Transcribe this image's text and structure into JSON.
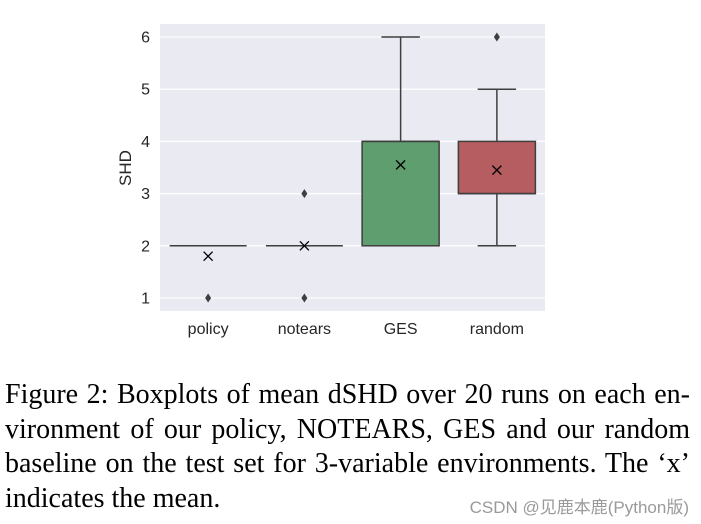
{
  "figure": {
    "caption_lines": [
      "Figure 2: Boxplots of mean dSHD over 20 runs on each en-",
      "vironment of our policy, NOTEARS, GES and our random",
      "baseline on the test set for 3-variable environments. The ‘x’",
      "indicates the mean."
    ]
  },
  "watermark": "CSDN @见鹿本鹿(Python版)",
  "chart_data": {
    "type": "box",
    "categories": [
      "policy",
      "notears",
      "GES",
      "random"
    ],
    "stats": [
      {
        "whisker_low": 2,
        "q1": 2,
        "median": 2,
        "q3": 2,
        "whisker_high": 2,
        "mean": 1.8,
        "outliers": [
          1
        ]
      },
      {
        "whisker_low": 2,
        "q1": 2,
        "median": 2,
        "q3": 2,
        "whisker_high": 2,
        "mean": 2.0,
        "outliers": [
          1,
          3
        ]
      },
      {
        "whisker_low": 2,
        "q1": 2,
        "median": 4,
        "q3": 4,
        "whisker_high": 6,
        "mean": 3.55,
        "outliers": []
      },
      {
        "whisker_low": 2,
        "q1": 3,
        "median": 3,
        "q3": 4,
        "whisker_high": 5,
        "mean": 3.45,
        "outliers": [
          6
        ]
      }
    ],
    "colors": [
      "#5975A4",
      "#CC8963",
      "#5F9E6E",
      "#B55D60"
    ],
    "line_color": "#3F3F3F",
    "background": "#EAEAF2",
    "ylabel": "SHD",
    "ylim": [
      0.75,
      6.25
    ],
    "yticks": [
      1,
      2,
      3,
      4,
      5,
      6
    ],
    "grid": true
  }
}
